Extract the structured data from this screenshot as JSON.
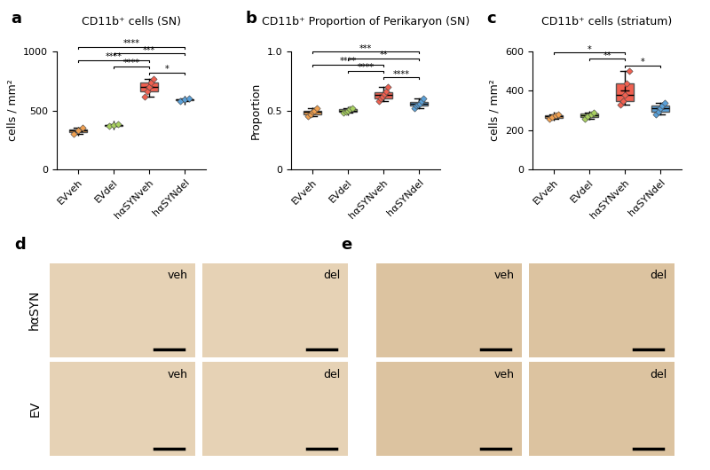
{
  "chart_data": [
    {
      "type": "box",
      "panel_label": "a",
      "title": "CD11b⁺ cells (SN)",
      "y_label": "cells / mm²",
      "categories": [
        "EVveh",
        "EVdel",
        "hαSYNveh",
        "hαSYNdel"
      ],
      "colors": [
        "#f0a050",
        "#a8d060",
        "#f06050",
        "#5aa0d8"
      ],
      "marker": "D",
      "values": [
        [
          300,
          330,
          350
        ],
        [
          368,
          375,
          382
        ],
        [
          620,
          660,
          700,
          740,
          770
        ],
        [
          580,
          592,
          600
        ]
      ],
      "ylim": [
        0,
        1000
      ],
      "yticks": [
        0,
        500,
        1000
      ],
      "significance": [
        {
          "from": "hαSYNveh",
          "to": "hαSYNdel",
          "label": "*"
        },
        {
          "from": "EVdel",
          "to": "hαSYNveh",
          "label": "****"
        },
        {
          "from": "EVveh",
          "to": "hαSYNveh",
          "label": "****"
        },
        {
          "from": "EVdel",
          "to": "hαSYNdel",
          "label": "***"
        },
        {
          "from": "EVveh",
          "to": "hαSYNdel",
          "label": "****"
        }
      ]
    },
    {
      "type": "box",
      "panel_label": "b",
      "title": "CD11b⁺ Proportion of Perikaryon (SN)",
      "y_label": "Proportion",
      "categories": [
        "EVveh",
        "EVdel",
        "hαSYNveh",
        "hαSYNdel"
      ],
      "colors": [
        "#f0a050",
        "#a8d060",
        "#f06050",
        "#5aa0d8"
      ],
      "marker": "D",
      "values": [
        [
          0.45,
          0.47,
          0.49,
          0.5,
          0.52
        ],
        [
          0.48,
          0.49,
          0.5,
          0.51,
          0.52
        ],
        [
          0.58,
          0.6,
          0.62,
          0.64,
          0.66,
          0.7
        ],
        [
          0.52,
          0.54,
          0.55,
          0.56,
          0.58,
          0.6
        ]
      ],
      "ylim": [
        0,
        1.0
      ],
      "yticks": [
        0,
        0.5,
        {
          "value": 1.0,
          "label": "1.0"
        }
      ],
      "significance": [
        {
          "from": "hαSYNveh",
          "to": "hαSYNdel",
          "label": "****"
        },
        {
          "from": "EVdel",
          "to": "hαSYNveh",
          "label": "****"
        },
        {
          "from": "EVveh",
          "to": "hαSYNveh",
          "label": "****"
        },
        {
          "from": "EVdel",
          "to": "hαSYNdel",
          "label": "**"
        },
        {
          "from": "EVveh",
          "to": "hαSYNdel",
          "label": "***"
        }
      ]
    },
    {
      "type": "box",
      "panel_label": "c",
      "title": "CD11b⁺ cells (striatum)",
      "y_label": "cells / mm²",
      "categories": [
        "EVveh",
        "EVdel",
        "hαSYNveh",
        "hαSYNdel"
      ],
      "colors": [
        "#f0a050",
        "#a8d060",
        "#f06050",
        "#5aa0d8"
      ],
      "marker": "D",
      "values": [
        [
          255,
          265,
          275,
          280
        ],
        [
          258,
          270,
          280,
          290
        ],
        [
          330,
          350,
          380,
          440,
          500
        ],
        [
          280,
          295,
          310,
          325,
          340
        ]
      ],
      "ylim": [
        0,
        600
      ],
      "yticks": [
        0,
        200,
        400,
        600
      ],
      "significance": [
        {
          "from": "hαSYNveh",
          "to": "hαSYNdel",
          "label": "*"
        },
        {
          "from": "EVdel",
          "to": "hαSYNveh",
          "label": "**"
        },
        {
          "from": "EVveh",
          "to": "hαSYNveh",
          "label": "*"
        }
      ]
    }
  ],
  "images": [
    {
      "panel_label": "d",
      "rows": [
        "hαSYN",
        "EV"
      ],
      "columns": [
        "veh",
        "del"
      ]
    },
    {
      "panel_label": "e",
      "rows": [
        "hαSYN",
        "EV"
      ],
      "columns": [
        "veh",
        "del"
      ]
    }
  ]
}
